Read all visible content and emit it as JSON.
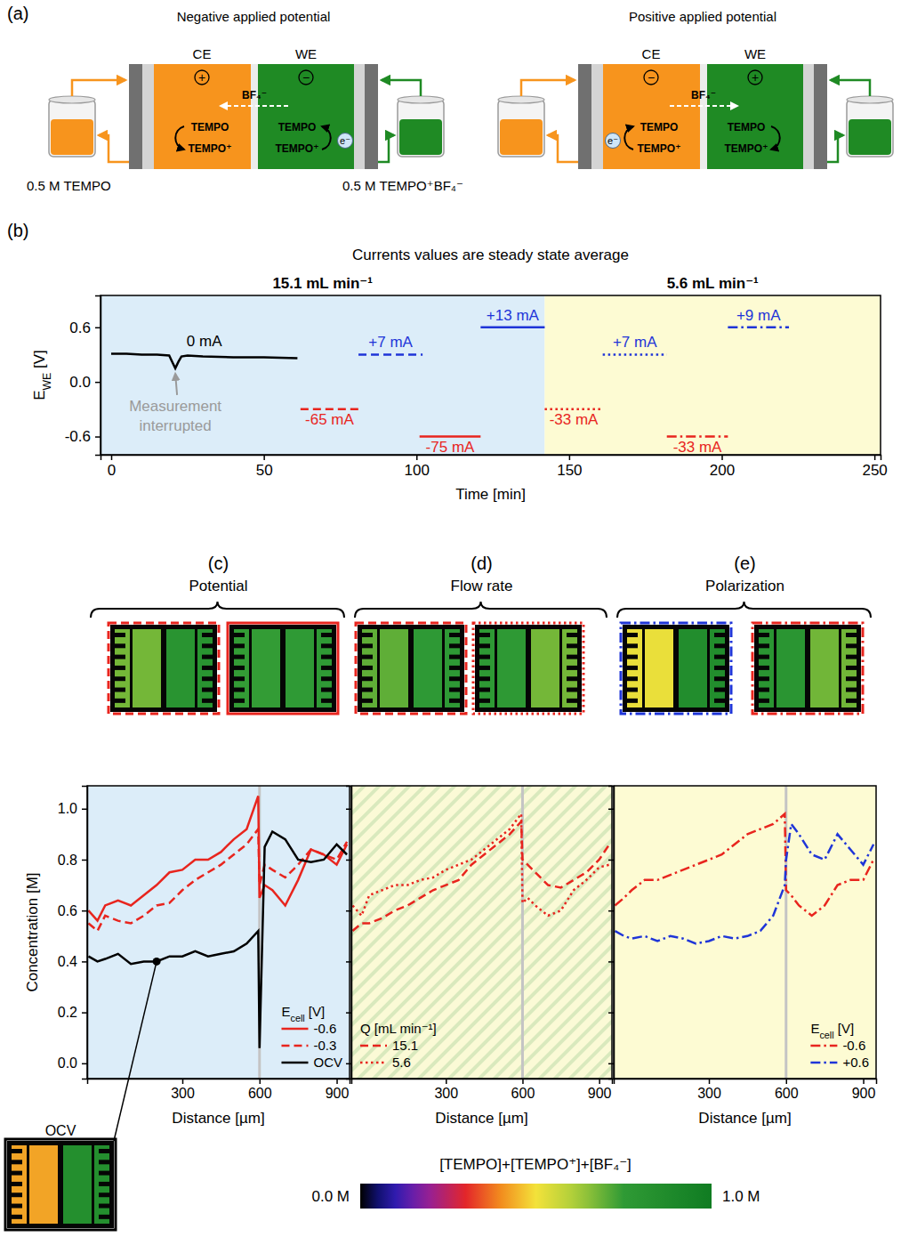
{
  "chart_data": [
    {
      "type": "line",
      "panel_label": "(b)",
      "title": "Currents values are steady state average",
      "x_label": "Time [min]",
      "y_label": "EWE [V]",
      "xlim": [
        -3.5,
        252
      ],
      "ylim": [
        -0.8,
        0.95
      ],
      "xticks": [
        0,
        50,
        100,
        150,
        200,
        250
      ],
      "yticks": [
        -0.6,
        {
          "value": 0,
          "label": "0.0"
        },
        0.6
      ],
      "bands": [
        {
          "name": "15.1 mL min⁻¹",
          "color": "#dcedf9",
          "x": [
            -3.5,
            142
          ]
        },
        {
          "name": "5.6 mL min⁻¹",
          "color": "#fdfbd3",
          "x": [
            142,
            252
          ]
        }
      ],
      "annotations": [
        {
          "text": "Measurement interrupted"
        }
      ],
      "series": [
        {
          "name": "0 mA",
          "color": "#000000",
          "line_style": "solid",
          "x": [
            0,
            5,
            10,
            15,
            19,
            20,
            21,
            22,
            23,
            25,
            30,
            40,
            50,
            61
          ],
          "values": [
            0.31,
            0.31,
            0.3,
            0.3,
            0.29,
            0.22,
            0.15,
            0.22,
            0.28,
            0.29,
            0.28,
            0.27,
            0.27,
            0.26
          ]
        },
        {
          "name": "-65 mA",
          "color": "#e8251e",
          "line_style": "dashed",
          "x": [
            62,
            81
          ],
          "values": [
            -0.3,
            -0.3
          ]
        },
        {
          "name": "+7 mA",
          "color": "#1f35d8",
          "line_style": "dashed",
          "x": [
            81,
            102
          ],
          "values": [
            0.3,
            0.3
          ]
        },
        {
          "name": "-75 mA",
          "color": "#e8251e",
          "line_style": "solid",
          "x": [
            101,
            121
          ],
          "values": [
            -0.6,
            -0.6
          ]
        },
        {
          "name": "+13 mA",
          "color": "#1f35d8",
          "line_style": "solid",
          "x": [
            121,
            142
          ],
          "values": [
            0.6,
            0.6
          ]
        },
        {
          "name": "-33 mA",
          "color": "#e8251e",
          "line_style": "dotted",
          "x": [
            142,
            161
          ],
          "values": [
            -0.3,
            -0.3
          ]
        },
        {
          "name": "+7 mA",
          "color": "#1f35d8",
          "line_style": "dotted",
          "x": [
            161,
            182
          ],
          "values": [
            0.3,
            0.3
          ]
        },
        {
          "name": "-33 mA",
          "color": "#e8251e",
          "line_style": "dashdot",
          "x": [
            182,
            202
          ],
          "values": [
            -0.6,
            -0.6
          ]
        },
        {
          "name": "+9 mA",
          "color": "#1f35d8",
          "line_style": "dashdot",
          "x": [
            202,
            222
          ],
          "values": [
            0.6,
            0.6
          ]
        }
      ]
    },
    {
      "type": "line",
      "panel_label": "(c)",
      "title": "Potential",
      "x_label": "Distance [µm]",
      "y_label": "Concentration [M]",
      "xlim": [
        -70,
        950
      ],
      "ylim": [
        -0.06,
        1.09
      ],
      "xticks": [
        300,
        600,
        900
      ],
      "yticks": [
        {
          "value": 0,
          "label": "0.0"
        },
        0.2,
        0.4,
        0.6,
        0.8,
        {
          "value": 1,
          "label": "1.0"
        }
      ],
      "vlines": [
        600
      ],
      "legend": "lower right",
      "legend_title": "Ecell [V]",
      "x": [
        -65,
        -30,
        0,
        50,
        100,
        150,
        200,
        250,
        300,
        350,
        400,
        450,
        500,
        550,
        595,
        600,
        620,
        650,
        700,
        750,
        800,
        850,
        900,
        940
      ],
      "series": [
        {
          "name": "-0.6",
          "color": "#e8251e",
          "line_style": "solid",
          "values": [
            0.6,
            0.56,
            0.62,
            0.64,
            0.62,
            0.66,
            0.7,
            0.75,
            0.76,
            0.8,
            0.8,
            0.83,
            0.88,
            0.92,
            1.05,
            0.65,
            0.7,
            0.68,
            0.62,
            0.72,
            0.84,
            0.82,
            0.78,
            0.86
          ]
        },
        {
          "name": "-0.3",
          "color": "#e8251e",
          "line_style": "dashed",
          "values": [
            0.55,
            0.52,
            0.58,
            0.56,
            0.55,
            0.58,
            0.62,
            0.63,
            0.68,
            0.72,
            0.75,
            0.78,
            0.82,
            0.86,
            0.92,
            0.7,
            0.78,
            0.76,
            0.73,
            0.78,
            0.84,
            0.82,
            0.8,
            0.87
          ]
        },
        {
          "name": "OCV",
          "color": "#000000",
          "line_style": "solid",
          "values": [
            0.42,
            0.4,
            0.41,
            0.43,
            0.39,
            0.4,
            0.4,
            0.42,
            0.42,
            0.44,
            0.42,
            0.43,
            0.44,
            0.47,
            0.52,
            0.06,
            0.85,
            0.91,
            0.88,
            0.8,
            0.79,
            0.8,
            0.86,
            0.82
          ]
        }
      ]
    },
    {
      "type": "line",
      "panel_label": "(d)",
      "title": "Flow rate",
      "x_label": "Distance [µm]",
      "tick_labels": "x",
      "xlim": [
        -70,
        950
      ],
      "ylim": [
        -0.06,
        1.09
      ],
      "xticks": [
        300,
        600,
        900
      ],
      "yticks": [
        0,
        0.2,
        0.4,
        0.6,
        0.8,
        1
      ],
      "vlines": [
        600
      ],
      "legend": "lower left",
      "legend_title": "Q [mL min⁻¹]",
      "x": [
        -65,
        -30,
        0,
        50,
        100,
        150,
        200,
        250,
        300,
        350,
        400,
        450,
        500,
        550,
        595,
        600,
        620,
        650,
        700,
        750,
        800,
        850,
        900,
        940
      ],
      "series": [
        {
          "name": "15.1",
          "color": "#e8251e",
          "line_style": "dashed",
          "values": [
            0.52,
            0.55,
            0.55,
            0.57,
            0.6,
            0.62,
            0.65,
            0.68,
            0.7,
            0.72,
            0.78,
            0.82,
            0.86,
            0.9,
            0.95,
            0.8,
            0.78,
            0.75,
            0.7,
            0.69,
            0.72,
            0.75,
            0.8,
            0.86
          ]
        },
        {
          "name": "5.6",
          "color": "#e8251e",
          "line_style": "dotted",
          "values": [
            0.62,
            0.58,
            0.66,
            0.68,
            0.7,
            0.7,
            0.72,
            0.73,
            0.76,
            0.78,
            0.8,
            0.84,
            0.88,
            0.92,
            0.98,
            0.63,
            0.65,
            0.62,
            0.58,
            0.6,
            0.68,
            0.72,
            0.77,
            0.78
          ]
        }
      ]
    },
    {
      "type": "line",
      "panel_label": "(e)",
      "title": "Polarization",
      "x_label": "Distance [µm]",
      "tick_labels": "x",
      "xlim": [
        -70,
        950
      ],
      "ylim": [
        -0.06,
        1.09
      ],
      "xticks": [
        300,
        600,
        900
      ],
      "yticks": [
        0,
        0.2,
        0.4,
        0.6,
        0.8,
        1
      ],
      "vlines": [
        600
      ],
      "legend": "lower right",
      "legend_title": "Ecell [V]",
      "x": [
        -65,
        -30,
        0,
        50,
        100,
        150,
        200,
        250,
        300,
        350,
        400,
        450,
        500,
        550,
        595,
        600,
        620,
        650,
        700,
        750,
        800,
        850,
        900,
        940
      ],
      "series": [
        {
          "name": "-0.6",
          "color": "#e8251e",
          "line_style": "dashdot",
          "values": [
            0.62,
            0.65,
            0.68,
            0.72,
            0.72,
            0.74,
            0.76,
            0.78,
            0.8,
            0.82,
            0.86,
            0.9,
            0.92,
            0.94,
            0.98,
            0.68,
            0.66,
            0.62,
            0.58,
            0.62,
            0.7,
            0.72,
            0.72,
            0.8
          ]
        },
        {
          "name": "+0.6",
          "color": "#1f35d8",
          "line_style": "dashdot",
          "values": [
            0.52,
            0.5,
            0.49,
            0.5,
            0.48,
            0.5,
            0.49,
            0.47,
            0.48,
            0.5,
            0.49,
            0.5,
            0.52,
            0.58,
            0.7,
            0.8,
            0.94,
            0.9,
            0.82,
            0.8,
            0.9,
            0.84,
            0.78,
            0.86
          ]
        }
      ]
    }
  ],
  "diagram": {
    "panel_label": "(a)",
    "cells": [
      {
        "title": "Negative applied potential",
        "ce": "CE",
        "we": "WE",
        "ce_sign": "+",
        "we_sign": "−",
        "ion": "BF₄⁻",
        "ion_direction": "left",
        "electron": "e⁻",
        "electron_side": "WE"
      },
      {
        "title": "Positive applied potential",
        "ce": "CE",
        "we": "WE",
        "ce_sign": "−",
        "we_sign": "+",
        "ion": "BF₄⁻",
        "ion_direction": "right",
        "electron": "e⁻",
        "electron_side": "CE"
      }
    ],
    "species": [
      "TEMPO",
      "TEMPO⁺"
    ],
    "reservoirs": [
      "0.5 M TEMPO",
      "0.5 M TEMPO⁺BF₄⁻"
    ]
  },
  "ocv_inset": {
    "label": "OCV"
  },
  "colorbar": {
    "title": "[TEMPO]+[TEMPO⁺]+[BF₄⁻]",
    "range": [
      0,
      1
    ],
    "ticks": [
      {
        "value": 0,
        "label": "0.0 M"
      },
      {
        "value": 1,
        "label": "1.0 M"
      }
    ]
  }
}
